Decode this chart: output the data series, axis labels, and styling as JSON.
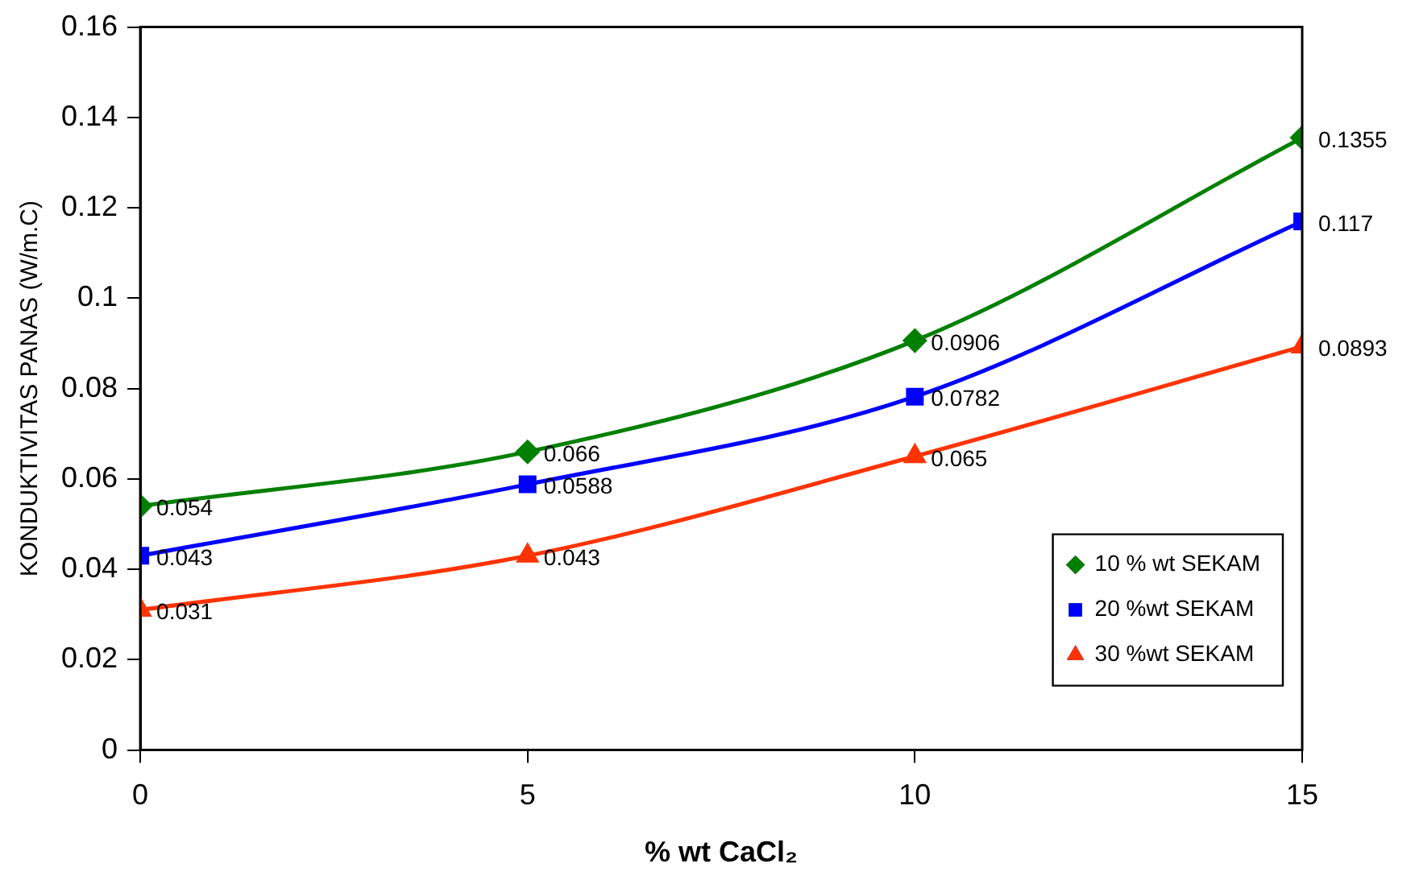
{
  "chart_data": {
    "type": "line",
    "xlabel": "% wt CaCl₂",
    "ylabel": "KONDUKTIVITAS PANAS (W/m.C)",
    "x": [
      0,
      5,
      10,
      15
    ],
    "xlim": [
      0,
      15
    ],
    "xticks": [
      0,
      5,
      10,
      15
    ],
    "ylim": [
      0,
      0.16
    ],
    "yticks": [
      0,
      0.02,
      0.04,
      0.06,
      0.08,
      0.1,
      0.12,
      0.14,
      0.16
    ],
    "grid": false,
    "legend": "bottom right",
    "data_labels": true,
    "line_style": "solid",
    "series": [
      {
        "name": "10 % wt SEKAM",
        "color": "#008000",
        "marker": "diamond",
        "values": [
          0.054,
          0.066,
          0.0906,
          0.1355
        ]
      },
      {
        "name": "20 %wt SEKAM",
        "color": "#0000ff",
        "marker": "square",
        "values": [
          0.043,
          0.0588,
          0.0782,
          0.117
        ]
      },
      {
        "name": "30 %wt SEKAM",
        "color": "#ff3300",
        "marker": "triangle",
        "values": [
          0.031,
          0.043,
          0.065,
          0.0893
        ]
      }
    ]
  }
}
